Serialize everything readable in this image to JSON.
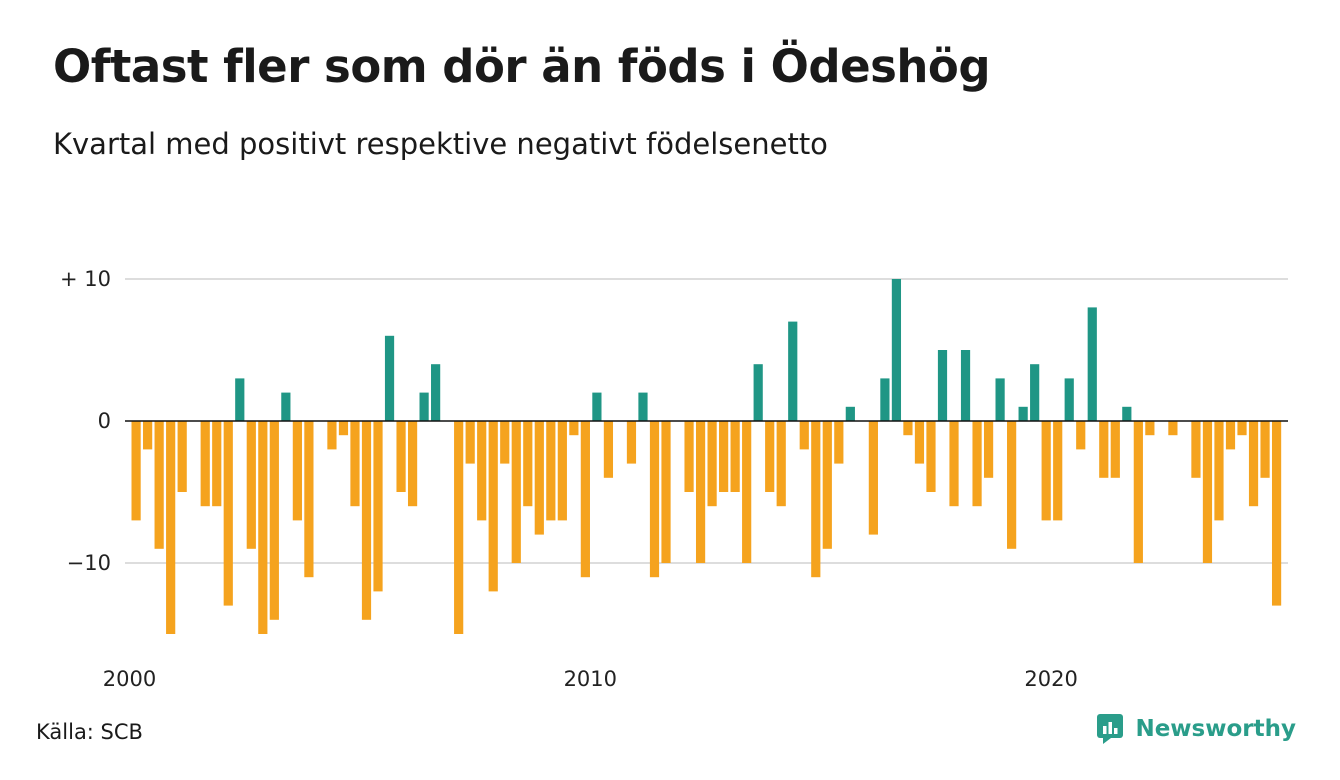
{
  "title": "Oftast fler som dör än föds i Ödeshög",
  "subtitle": "Kvartal med positivt respektive negativt födelsenetto",
  "source": "Källa: SCB",
  "brand": "Newsworthy",
  "brand_icon": "newsworthy-logo-icon",
  "colors": {
    "positive": "#1f9685",
    "negative": "#f5a31e",
    "grid": "#dddddd",
    "zero": "#111111"
  },
  "chart_data": {
    "type": "bar",
    "title": "Oftast fler som dör än föds i Ödeshög",
    "subtitle": "Kvartal med positivt respektive negativt födelsenetto",
    "xlabel": "",
    "ylabel": "",
    "ylim": [
      -15,
      10
    ],
    "y_ticks": [
      {
        "value": 10,
        "label": "+ 10"
      },
      {
        "value": 0,
        "label": "0"
      },
      {
        "value": -10,
        "label": "−10"
      }
    ],
    "x_ticks": [
      {
        "label": "2000",
        "category_index": 0
      },
      {
        "label": "2010",
        "category_index": 40
      },
      {
        "label": "2020",
        "category_index": 80
      }
    ],
    "grid": true,
    "legend": "none",
    "categories": [
      "2000Q1",
      "2000Q2",
      "2000Q3",
      "2000Q4",
      "2001Q1",
      "2001Q2",
      "2001Q3",
      "2001Q4",
      "2002Q1",
      "2002Q2",
      "2002Q3",
      "2002Q4",
      "2003Q1",
      "2003Q2",
      "2003Q3",
      "2003Q4",
      "2004Q1",
      "2004Q2",
      "2004Q3",
      "2004Q4",
      "2005Q1",
      "2005Q2",
      "2005Q3",
      "2005Q4",
      "2006Q1",
      "2006Q2",
      "2006Q3",
      "2006Q4",
      "2007Q1",
      "2007Q2",
      "2007Q3",
      "2007Q4",
      "2008Q1",
      "2008Q2",
      "2008Q3",
      "2008Q4",
      "2009Q1",
      "2009Q2",
      "2009Q3",
      "2009Q4",
      "2010Q1",
      "2010Q2",
      "2010Q3",
      "2010Q4",
      "2011Q1",
      "2011Q2",
      "2011Q3",
      "2011Q4",
      "2012Q1",
      "2012Q2",
      "2012Q3",
      "2012Q4",
      "2013Q1",
      "2013Q2",
      "2013Q3",
      "2013Q4",
      "2014Q1",
      "2014Q2",
      "2014Q3",
      "2014Q4",
      "2015Q1",
      "2015Q2",
      "2015Q3",
      "2015Q4",
      "2016Q1",
      "2016Q2",
      "2016Q3",
      "2016Q4",
      "2017Q1",
      "2017Q2",
      "2017Q3",
      "2017Q4",
      "2018Q1",
      "2018Q2",
      "2018Q3",
      "2018Q4",
      "2019Q1",
      "2019Q2",
      "2019Q3",
      "2019Q4",
      "2020Q1",
      "2020Q2",
      "2020Q3",
      "2020Q4",
      "2021Q1",
      "2021Q2",
      "2021Q3",
      "2021Q4",
      "2022Q1",
      "2022Q2",
      "2022Q3",
      "2022Q4",
      "2023Q1",
      "2023Q2",
      "2023Q3",
      "2023Q4",
      "2024Q1",
      "2024Q2",
      "2024Q3",
      "2024Q4",
      "2025Q1"
    ],
    "values": [
      -7,
      -2,
      -9,
      -15,
      -5,
      0,
      -6,
      -6,
      -13,
      3,
      -9,
      -15,
      -14,
      2,
      -7,
      -11,
      0,
      -2,
      -1,
      -6,
      -14,
      -12,
      6,
      -5,
      -6,
      2,
      4,
      0,
      -15,
      -3,
      -7,
      -12,
      -3,
      -10,
      -6,
      -8,
      -7,
      -7,
      -1,
      -11,
      2,
      -4,
      0,
      -3,
      2,
      -11,
      -10,
      0,
      -5,
      -10,
      -6,
      -5,
      -5,
      -10,
      4,
      -5,
      -6,
      7,
      -2,
      -11,
      -9,
      -3,
      1,
      0,
      -8,
      3,
      10,
      -1,
      -3,
      -5,
      5,
      -6,
      5,
      -6,
      -4,
      3,
      -9,
      1,
      4,
      -7,
      -7,
      3,
      -2,
      8,
      -4,
      -4,
      1,
      -10,
      -1,
      0,
      -1,
      0,
      -4,
      -10,
      -7,
      -2,
      -1,
      -6,
      -4,
      -13,
      0
    ]
  }
}
